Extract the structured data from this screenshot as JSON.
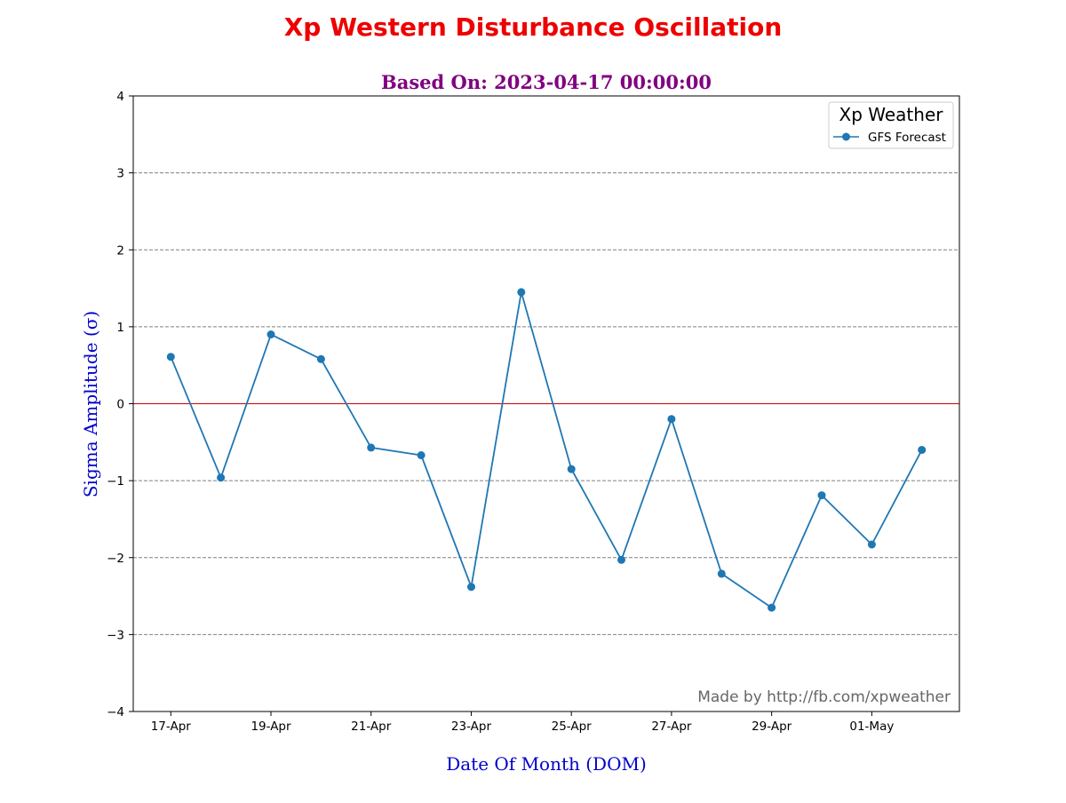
{
  "colors": {
    "title": "#ee0000",
    "subtitle": "#800080",
    "axis_label": "#0000cd",
    "series": "#1f77b4",
    "zero_line": "#cc0000",
    "grid": "#808080",
    "watermark": "#666666"
  },
  "chart_data": {
    "type": "line",
    "title": "Xp Western Disturbance Oscillation",
    "subtitle": "Based On: 2023-04-17 00:00:00",
    "xlabel": "Date Of Month (DOM)",
    "ylabel": "Sigma Amplitude (σ)",
    "ylim": [
      -4,
      4
    ],
    "yticks": [
      4,
      3,
      2,
      1,
      0,
      -1,
      -2,
      -3,
      -4
    ],
    "ytick_labels": [
      "4",
      "3",
      "2",
      "1",
      "0",
      "−1",
      "−2",
      "−3",
      "−4"
    ],
    "xticks": [
      "17-Apr",
      "19-Apr",
      "21-Apr",
      "23-Apr",
      "25-Apr",
      "27-Apr",
      "29-Apr",
      "01-May"
    ],
    "xtick_dates": [
      "2023-04-17",
      "2023-04-19",
      "2023-04-21",
      "2023-04-23",
      "2023-04-25",
      "2023-04-27",
      "2023-04-29",
      "2023-05-01"
    ],
    "grid": "horizontal dashed",
    "reference_line": 0,
    "legend": {
      "title": "Xp Weather",
      "placement": "top-right",
      "entries": [
        "GFS Forecast"
      ]
    },
    "series": [
      {
        "name": "GFS Forecast",
        "marker": "circle",
        "x": [
          "2023-04-17",
          "2023-04-18",
          "2023-04-19",
          "2023-04-20",
          "2023-04-21",
          "2023-04-22",
          "2023-04-23",
          "2023-04-24",
          "2023-04-25",
          "2023-04-26",
          "2023-04-27",
          "2023-04-28",
          "2023-04-29",
          "2023-04-30",
          "2023-05-01",
          "2023-05-02"
        ],
        "values": [
          0.61,
          -0.96,
          0.9,
          0.58,
          -0.57,
          -0.67,
          -2.38,
          1.45,
          -0.85,
          -2.03,
          -0.2,
          -2.21,
          -2.65,
          -1.19,
          -1.83,
          -0.6
        ]
      }
    ],
    "annotation": "Made by http://fb.com/xpweather"
  }
}
